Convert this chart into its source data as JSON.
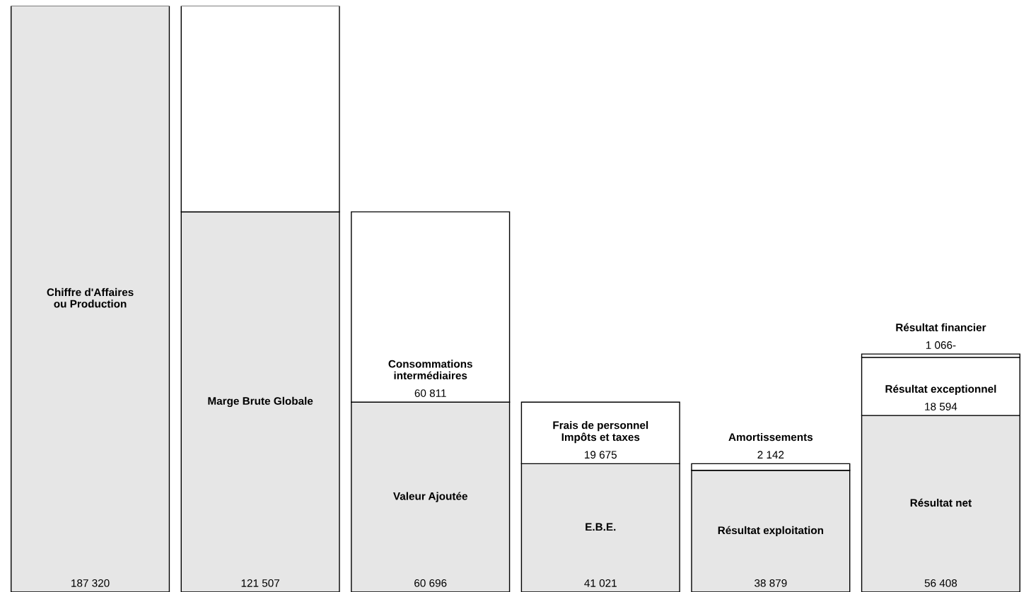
{
  "chart_data": {
    "type": "bar",
    "stacked": true,
    "categories": [
      "Chiffre d'Affaires\nou Production",
      "Marge Brute Globale",
      "Valeur Ajoutée",
      "E.B.E.",
      "Résultat exploitation",
      "Résultat net"
    ],
    "series": [
      {
        "color": "#e6e6e6",
        "values": [
          187320,
          121507,
          60696,
          41021,
          38879,
          56408
        ],
        "value_labels": [
          "187 320",
          "121 507",
          "60 696",
          "41 021",
          "38 879",
          "56 408"
        ]
      },
      {
        "color": "#ffffff",
        "values": [
          null,
          65813,
          60811,
          19675,
          2142,
          18594
        ],
        "value_labels": [
          null,
          null,
          "60 811",
          "19 675",
          "2 142",
          "18 594"
        ]
      },
      {
        "color": "#ffffff",
        "values": [
          null,
          null,
          null,
          null,
          null,
          1066
        ],
        "value_labels": [
          null,
          null,
          null,
          null,
          null,
          "1 066-"
        ]
      }
    ],
    "annotations": [
      "Consommations\nintermédiaires",
      "Frais de personnel\nImpôts et taxes",
      "Amortissements",
      "Résultat exceptionnel",
      "Résultat financier"
    ],
    "legend": false
  }
}
